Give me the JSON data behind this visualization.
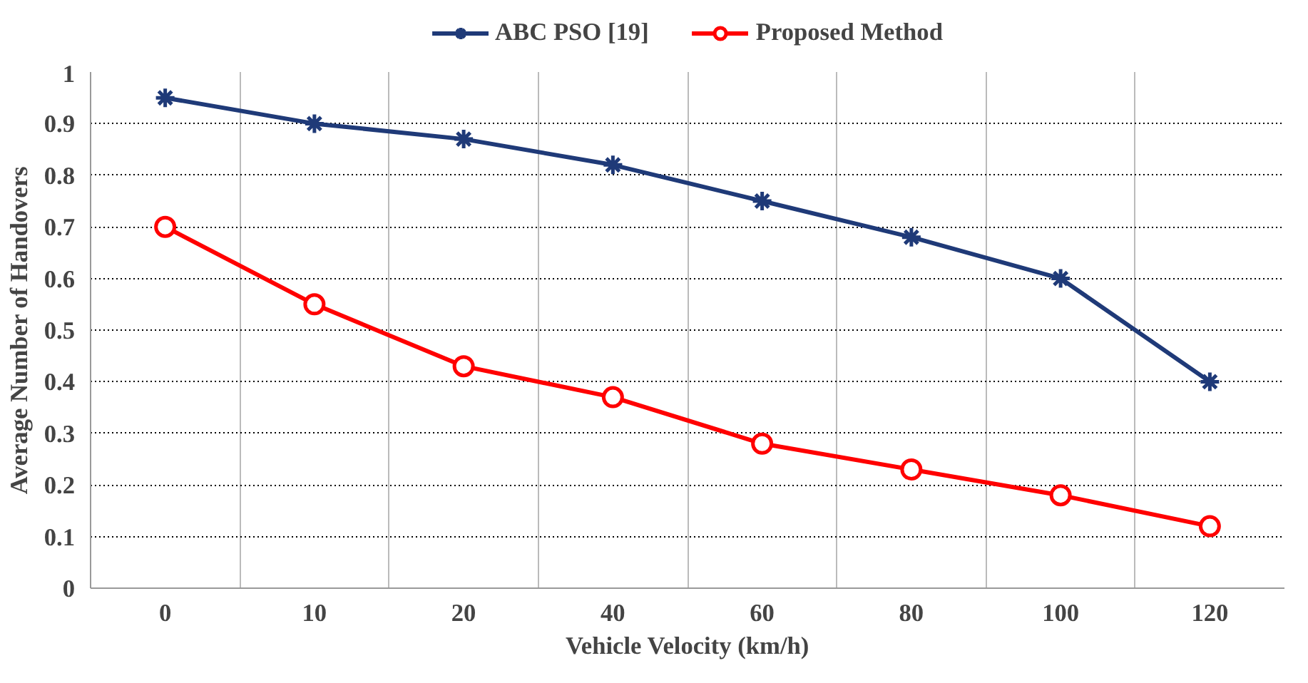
{
  "chart_data": {
    "type": "line",
    "xlabel": "Vehicle Velocity (km/h)",
    "ylabel": "Average Number of Handovers",
    "categories": [
      "0",
      "10",
      "20",
      "40",
      "60",
      "80",
      "100",
      "120"
    ],
    "series": [
      {
        "name": "ABC PSO [19]",
        "color": "#1f3a78",
        "marker": "cross",
        "values": [
          0.95,
          0.9,
          0.87,
          0.82,
          0.75,
          0.68,
          0.6,
          0.4
        ]
      },
      {
        "name": "Proposed Method",
        "color": "#ff0000",
        "marker": "circle",
        "values": [
          0.7,
          0.55,
          0.43,
          0.37,
          0.28,
          0.23,
          0.18,
          0.12
        ]
      }
    ],
    "ylim": [
      0,
      1
    ],
    "yticks": [
      0,
      0.1,
      0.2,
      0.3,
      0.4,
      0.5,
      0.6,
      0.7,
      0.8,
      0.9,
      1
    ],
    "grid": true,
    "legend": "top",
    "line_style": "solid"
  }
}
